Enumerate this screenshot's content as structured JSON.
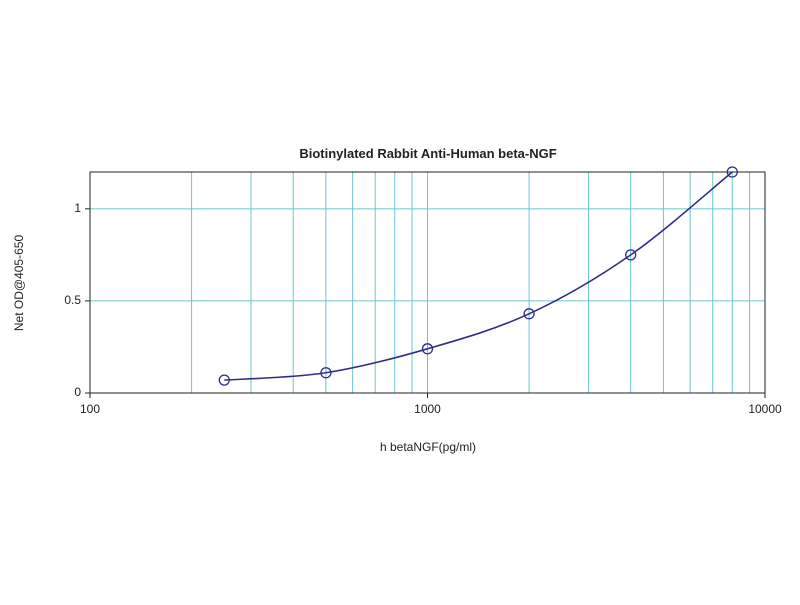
{
  "chart_data": {
    "type": "scatter",
    "title": "Biotinylated Rabbit Anti-Human beta-NGF",
    "x_label": "h betaNGF(pg/ml)",
    "y_label": "Net OD@405-650",
    "xscale": "log",
    "xlim": [
      100,
      10000
    ],
    "xticks": [
      100,
      1000,
      10000
    ],
    "xgrid": [
      200,
      300,
      400,
      500,
      600,
      700,
      800,
      900,
      2000,
      3000,
      4000,
      5000,
      6000,
      7000,
      8000,
      9000
    ],
    "ylim": [
      0,
      1.2
    ],
    "yticks": [
      0,
      0.5,
      1
    ],
    "grid": true,
    "grid_color": "#6cc5cf",
    "series": [
      {
        "color": "#2e2e8a",
        "x": [
          250,
          500,
          1000,
          2000,
          4000,
          8000
        ],
        "values": [
          0.07,
          0.11,
          0.24,
          0.43,
          0.75,
          1.2
        ]
      }
    ]
  }
}
